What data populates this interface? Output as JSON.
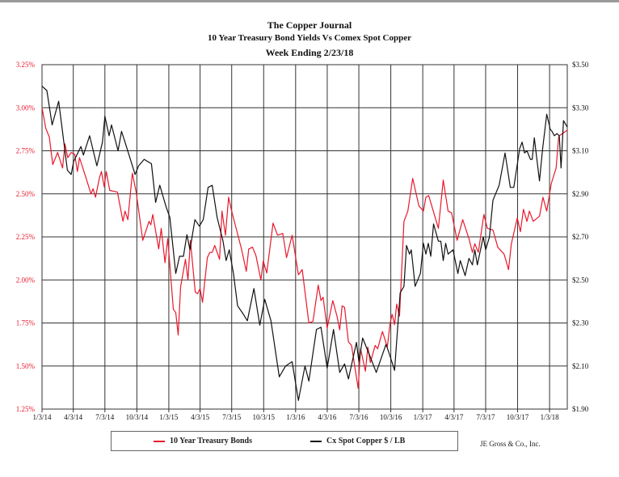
{
  "title": "The Copper Journal",
  "subtitle": "10 Year Treasury Bond Yields Vs Comex Spot Copper",
  "week_ending": "Week Ending  2/23/18",
  "credit": "JE Gross & Co., Inc.",
  "colors": {
    "yield": "#e8192c",
    "copper": "#111111",
    "grid": "#333333"
  },
  "chart_data": {
    "type": "line",
    "grid": true,
    "legend_position": "bottom",
    "x_range": [
      "1/3/14",
      "2/23/18"
    ],
    "x_ticks": [
      "1/3/14",
      "4/3/14",
      "7/3/14",
      "10/3/14",
      "1/3/15",
      "4/3/15",
      "7/3/15",
      "10/3/15",
      "1/3/16",
      "4/3/16",
      "7/3/16",
      "10/3/16",
      "1/3/17",
      "4/3/17",
      "7/3/17",
      "10/3/17",
      "1/3/18"
    ],
    "y_left": {
      "range": [
        1.25,
        3.25
      ],
      "ticks": [
        "3.25%",
        "3.00%",
        "2.75%",
        "2.50%",
        "2.25%",
        "2.00%",
        "1.75%",
        "1.50%",
        "1.25%"
      ]
    },
    "y_right": {
      "range": [
        1.9,
        3.5
      ],
      "ticks": [
        "$3.50",
        "$3.30",
        "$3.10",
        "$2.90",
        "$2.70",
        "$2.50",
        "$2.30",
        "$2.10",
        "$1.90"
      ]
    },
    "series": [
      {
        "name": "10 Year Treasury Bonds",
        "axis": "left",
        "points": [
          [
            "1/3/14",
            3.0
          ],
          [
            "1/14/14",
            2.88
          ],
          [
            "1/24/14",
            2.83
          ],
          [
            "2/3/14",
            2.67
          ],
          [
            "2/17/14",
            2.74
          ],
          [
            "3/3/14",
            2.65
          ],
          [
            "3/10/14",
            2.79
          ],
          [
            "3/18/14",
            2.71
          ],
          [
            "3/28/14",
            2.74
          ],
          [
            "4/7/14",
            2.73
          ],
          [
            "4/15/14",
            2.63
          ],
          [
            "4/21/14",
            2.71
          ],
          [
            "5/10/14",
            2.59
          ],
          [
            "5/24/14",
            2.5
          ],
          [
            "5/30/14",
            2.53
          ],
          [
            "6/6/14",
            2.48
          ],
          [
            "6/17/14",
            2.59
          ],
          [
            "6/23/14",
            2.63
          ],
          [
            "7/1/14",
            2.54
          ],
          [
            "7/7/14",
            2.63
          ],
          [
            "7/17/14",
            2.52
          ],
          [
            "8/8/14",
            2.51
          ],
          [
            "8/24/14",
            2.34
          ],
          [
            "8/30/14",
            2.4
          ],
          [
            "9/7/14",
            2.35
          ],
          [
            "9/20/14",
            2.62
          ],
          [
            "10/1/14",
            2.51
          ],
          [
            "10/20/14",
            2.23
          ],
          [
            "11/7/14",
            2.34
          ],
          [
            "11/12/14",
            2.32
          ],
          [
            "11/18/14",
            2.38
          ],
          [
            "12/5/14",
            2.18
          ],
          [
            "12/12/14",
            2.3
          ],
          [
            "12/23/14",
            2.1
          ],
          [
            "12/31/14",
            2.24
          ],
          [
            "1/16/15",
            1.83
          ],
          [
            "1/23/15",
            1.81
          ],
          [
            "1/30/15",
            1.68
          ],
          [
            "2/6/15",
            1.96
          ],
          [
            "2/20/15",
            2.12
          ],
          [
            "2/27/15",
            2.0
          ],
          [
            "3/6/15",
            2.23
          ],
          [
            "3/20/15",
            1.93
          ],
          [
            "3/27/15",
            1.92
          ],
          [
            "4/3/15",
            1.95
          ],
          [
            "4/10/15",
            1.87
          ],
          [
            "4/24/15",
            2.13
          ],
          [
            "5/1/15",
            2.16
          ],
          [
            "5/8/15",
            2.16
          ],
          [
            "5/15/15",
            2.2
          ],
          [
            "5/29/15",
            2.12
          ],
          [
            "6/5/15",
            2.4
          ],
          [
            "6/15/15",
            2.26
          ],
          [
            "6/24/15",
            2.48
          ],
          [
            "7/3/15",
            2.4
          ],
          [
            "7/31/15",
            2.18
          ],
          [
            "8/14/15",
            2.05
          ],
          [
            "8/21/15",
            2.18
          ],
          [
            "9/1/15",
            2.19
          ],
          [
            "9/11/15",
            2.14
          ],
          [
            "9/25/15",
            2.0
          ],
          [
            "10/2/15",
            2.11
          ],
          [
            "10/12/15",
            2.04
          ],
          [
            "10/30/15",
            2.33
          ],
          [
            "11/12/15",
            2.26
          ],
          [
            "11/27/15",
            2.27
          ],
          [
            "12/8/15",
            2.13
          ],
          [
            "12/24/15",
            2.26
          ],
          [
            "1/11/16",
            2.03
          ],
          [
            "1/22/16",
            2.06
          ],
          [
            "2/10/16",
            1.75
          ],
          [
            "2/22/16",
            1.76
          ],
          [
            "3/8/16",
            1.97
          ],
          [
            "3/16/16",
            1.88
          ],
          [
            "3/22/16",
            1.9
          ],
          [
            "4/3/16",
            1.72
          ],
          [
            "4/19/16",
            1.88
          ],
          [
            "5/1/16",
            1.79
          ],
          [
            "5/9/16",
            1.71
          ],
          [
            "5/16/16",
            1.85
          ],
          [
            "5/23/16",
            1.84
          ],
          [
            "6/3/16",
            1.64
          ],
          [
            "6/12/16",
            1.62
          ],
          [
            "7/1/16",
            1.37
          ],
          [
            "7/8/16",
            1.6
          ],
          [
            "7/22/16",
            1.47
          ],
          [
            "7/29/16",
            1.61
          ],
          [
            "8/5/16",
            1.52
          ],
          [
            "8/19/16",
            1.62
          ],
          [
            "8/26/16",
            1.6
          ],
          [
            "9/9/16",
            1.7
          ],
          [
            "9/23/16",
            1.61
          ],
          [
            "10/1/16",
            1.75
          ],
          [
            "10/7/16",
            1.8
          ],
          [
            "10/14/16",
            1.74
          ],
          [
            "10/20/16",
            1.86
          ],
          [
            "10/28/16",
            1.79
          ],
          [
            "11/10/16",
            2.34
          ],
          [
            "11/21/16",
            2.4
          ],
          [
            "12/5/16",
            2.59
          ],
          [
            "12/23/16",
            2.43
          ],
          [
            "1/5/17",
            2.4
          ],
          [
            "1/12/17",
            2.48
          ],
          [
            "1/20/17",
            2.49
          ],
          [
            "2/17/17",
            2.3
          ],
          [
            "3/3/17",
            2.58
          ],
          [
            "3/17/17",
            2.4
          ],
          [
            "3/27/17",
            2.39
          ],
          [
            "4/12/17",
            2.23
          ],
          [
            "4/28/17",
            2.35
          ],
          [
            "5/16/17",
            2.24
          ],
          [
            "5/26/17",
            2.16
          ],
          [
            "6/2/17",
            2.21
          ],
          [
            "6/12/17",
            2.16
          ],
          [
            "6/28/17",
            2.38
          ],
          [
            "7/8/17",
            2.3
          ],
          [
            "7/24/17",
            2.29
          ],
          [
            "8/7/17",
            2.19
          ],
          [
            "8/25/17",
            2.15
          ],
          [
            "9/7/17",
            2.06
          ],
          [
            "9/15/17",
            2.21
          ],
          [
            "10/2/17",
            2.36
          ],
          [
            "10/11/17",
            2.28
          ],
          [
            "10/20/17",
            2.41
          ],
          [
            "10/30/17",
            2.34
          ],
          [
            "11/6/17",
            2.4
          ],
          [
            "11/17/17",
            2.34
          ],
          [
            "12/5/17",
            2.37
          ],
          [
            "12/15/17",
            2.48
          ],
          [
            "12/26/17",
            2.4
          ],
          [
            "1/8/18",
            2.56
          ],
          [
            "1/22/18",
            2.65
          ],
          [
            "1/29/18",
            2.83
          ],
          [
            "2/2/18",
            2.84
          ],
          [
            "2/9/18",
            2.85
          ],
          [
            "2/23/18",
            2.87
          ]
        ]
      },
      {
        "name": "Cx  Spot Copper $ / LB",
        "axis": "right",
        "points": [
          [
            "1/3/14",
            3.4
          ],
          [
            "1/17/14",
            3.38
          ],
          [
            "2/1/14",
            3.22
          ],
          [
            "2/20/14",
            3.33
          ],
          [
            "3/17/14",
            3.01
          ],
          [
            "3/28/14",
            2.99
          ],
          [
            "4/4/14",
            3.05
          ],
          [
            "4/25/14",
            3.12
          ],
          [
            "5/2/14",
            3.08
          ],
          [
            "5/20/14",
            3.17
          ],
          [
            "6/10/14",
            3.03
          ],
          [
            "6/26/14",
            3.14
          ],
          [
            "7/3/14",
            3.26
          ],
          [
            "7/15/14",
            3.17
          ],
          [
            "7/22/14",
            3.22
          ],
          [
            "8/10/14",
            3.1
          ],
          [
            "8/20/14",
            3.19
          ],
          [
            "8/30/14",
            3.14
          ],
          [
            "9/28/14",
            2.99
          ],
          [
            "10/8/14",
            3.03
          ],
          [
            "10/24/14",
            3.06
          ],
          [
            "11/14/14",
            3.04
          ],
          [
            "11/26/14",
            2.86
          ],
          [
            "12/8/14",
            2.94
          ],
          [
            "12/26/14",
            2.84
          ],
          [
            "1/6/15",
            2.79
          ],
          [
            "1/23/15",
            2.53
          ],
          [
            "2/3/15",
            2.61
          ],
          [
            "2/14/15",
            2.61
          ],
          [
            "2/24/15",
            2.71
          ],
          [
            "3/5/15",
            2.64
          ],
          [
            "3/19/15",
            2.78
          ],
          [
            "4/1/15",
            2.75
          ],
          [
            "4/12/15",
            2.78
          ],
          [
            "4/26/15",
            2.93
          ],
          [
            "5/8/15",
            2.94
          ],
          [
            "5/22/15",
            2.79
          ],
          [
            "6/8/15",
            2.68
          ],
          [
            "6/17/15",
            2.59
          ],
          [
            "6/26/15",
            2.64
          ],
          [
            "7/8/15",
            2.53
          ],
          [
            "7/20/15",
            2.38
          ],
          [
            "8/6/15",
            2.34
          ],
          [
            "8/17/15",
            2.31
          ],
          [
            "9/5/15",
            2.46
          ],
          [
            "9/22/15",
            2.29
          ],
          [
            "10/6/15",
            2.41
          ],
          [
            "10/24/15",
            2.31
          ],
          [
            "11/17/15",
            2.05
          ],
          [
            "12/5/15",
            2.1
          ],
          [
            "12/24/15",
            2.12
          ],
          [
            "1/11/16",
            1.94
          ],
          [
            "1/30/16",
            2.1
          ],
          [
            "2/10/16",
            2.03
          ],
          [
            "3/3/16",
            2.27
          ],
          [
            "3/16/16",
            2.28
          ],
          [
            "4/3/16",
            2.09
          ],
          [
            "4/21/16",
            2.27
          ],
          [
            "5/9/16",
            2.07
          ],
          [
            "5/23/16",
            2.11
          ],
          [
            "6/3/16",
            2.04
          ],
          [
            "6/26/16",
            2.21
          ],
          [
            "7/3/16",
            2.12
          ],
          [
            "7/14/16",
            2.23
          ],
          [
            "8/3/16",
            2.15
          ],
          [
            "8/22/16",
            2.07
          ],
          [
            "9/19/16",
            2.2
          ],
          [
            "9/26/16",
            2.17
          ],
          [
            "10/14/16",
            2.08
          ],
          [
            "10/30/16",
            2.44
          ],
          [
            "11/10/16",
            2.47
          ],
          [
            "11/17/16",
            2.66
          ],
          [
            "11/26/16",
            2.62
          ],
          [
            "12/1/16",
            2.64
          ],
          [
            "12/12/16",
            2.47
          ],
          [
            "12/27/16",
            2.53
          ],
          [
            "1/5/17",
            2.67
          ],
          [
            "1/12/17",
            2.62
          ],
          [
            "1/19/17",
            2.67
          ],
          [
            "1/26/17",
            2.61
          ],
          [
            "2/3/17",
            2.76
          ],
          [
            "2/17/17",
            2.68
          ],
          [
            "2/24/17",
            2.68
          ],
          [
            "3/3/17",
            2.59
          ],
          [
            "3/10/17",
            2.67
          ],
          [
            "3/17/17",
            2.62
          ],
          [
            "3/31/17",
            2.64
          ],
          [
            "4/14/17",
            2.53
          ],
          [
            "4/21/17",
            2.59
          ],
          [
            "5/5/17",
            2.52
          ],
          [
            "5/16/17",
            2.6
          ],
          [
            "5/26/17",
            2.57
          ],
          [
            "6/2/17",
            2.64
          ],
          [
            "6/9/17",
            2.57
          ],
          [
            "6/26/17",
            2.7
          ],
          [
            "7/3/17",
            2.64
          ],
          [
            "7/14/17",
            2.7
          ],
          [
            "7/24/17",
            2.87
          ],
          [
            "8/11/17",
            2.94
          ],
          [
            "8/28/17",
            3.09
          ],
          [
            "9/12/17",
            2.93
          ],
          [
            "9/22/17",
            2.93
          ],
          [
            "10/9/17",
            3.11
          ],
          [
            "10/16/17",
            3.14
          ],
          [
            "10/23/17",
            3.09
          ],
          [
            "10/30/17",
            3.1
          ],
          [
            "11/9/17",
            3.06
          ],
          [
            "11/14/17",
            3.06
          ],
          [
            "11/20/17",
            3.16
          ],
          [
            "12/5/17",
            2.96
          ],
          [
            "12/14/17",
            3.11
          ],
          [
            "12/26/17",
            3.27
          ],
          [
            "1/5/18",
            3.2
          ],
          [
            "1/10/18",
            3.19
          ],
          [
            "1/17/18",
            3.17
          ],
          [
            "1/24/18",
            3.18
          ],
          [
            "1/31/18",
            3.17
          ],
          [
            "2/5/18",
            3.02
          ],
          [
            "2/12/18",
            3.24
          ],
          [
            "2/23/18",
            3.21
          ]
        ]
      }
    ]
  }
}
